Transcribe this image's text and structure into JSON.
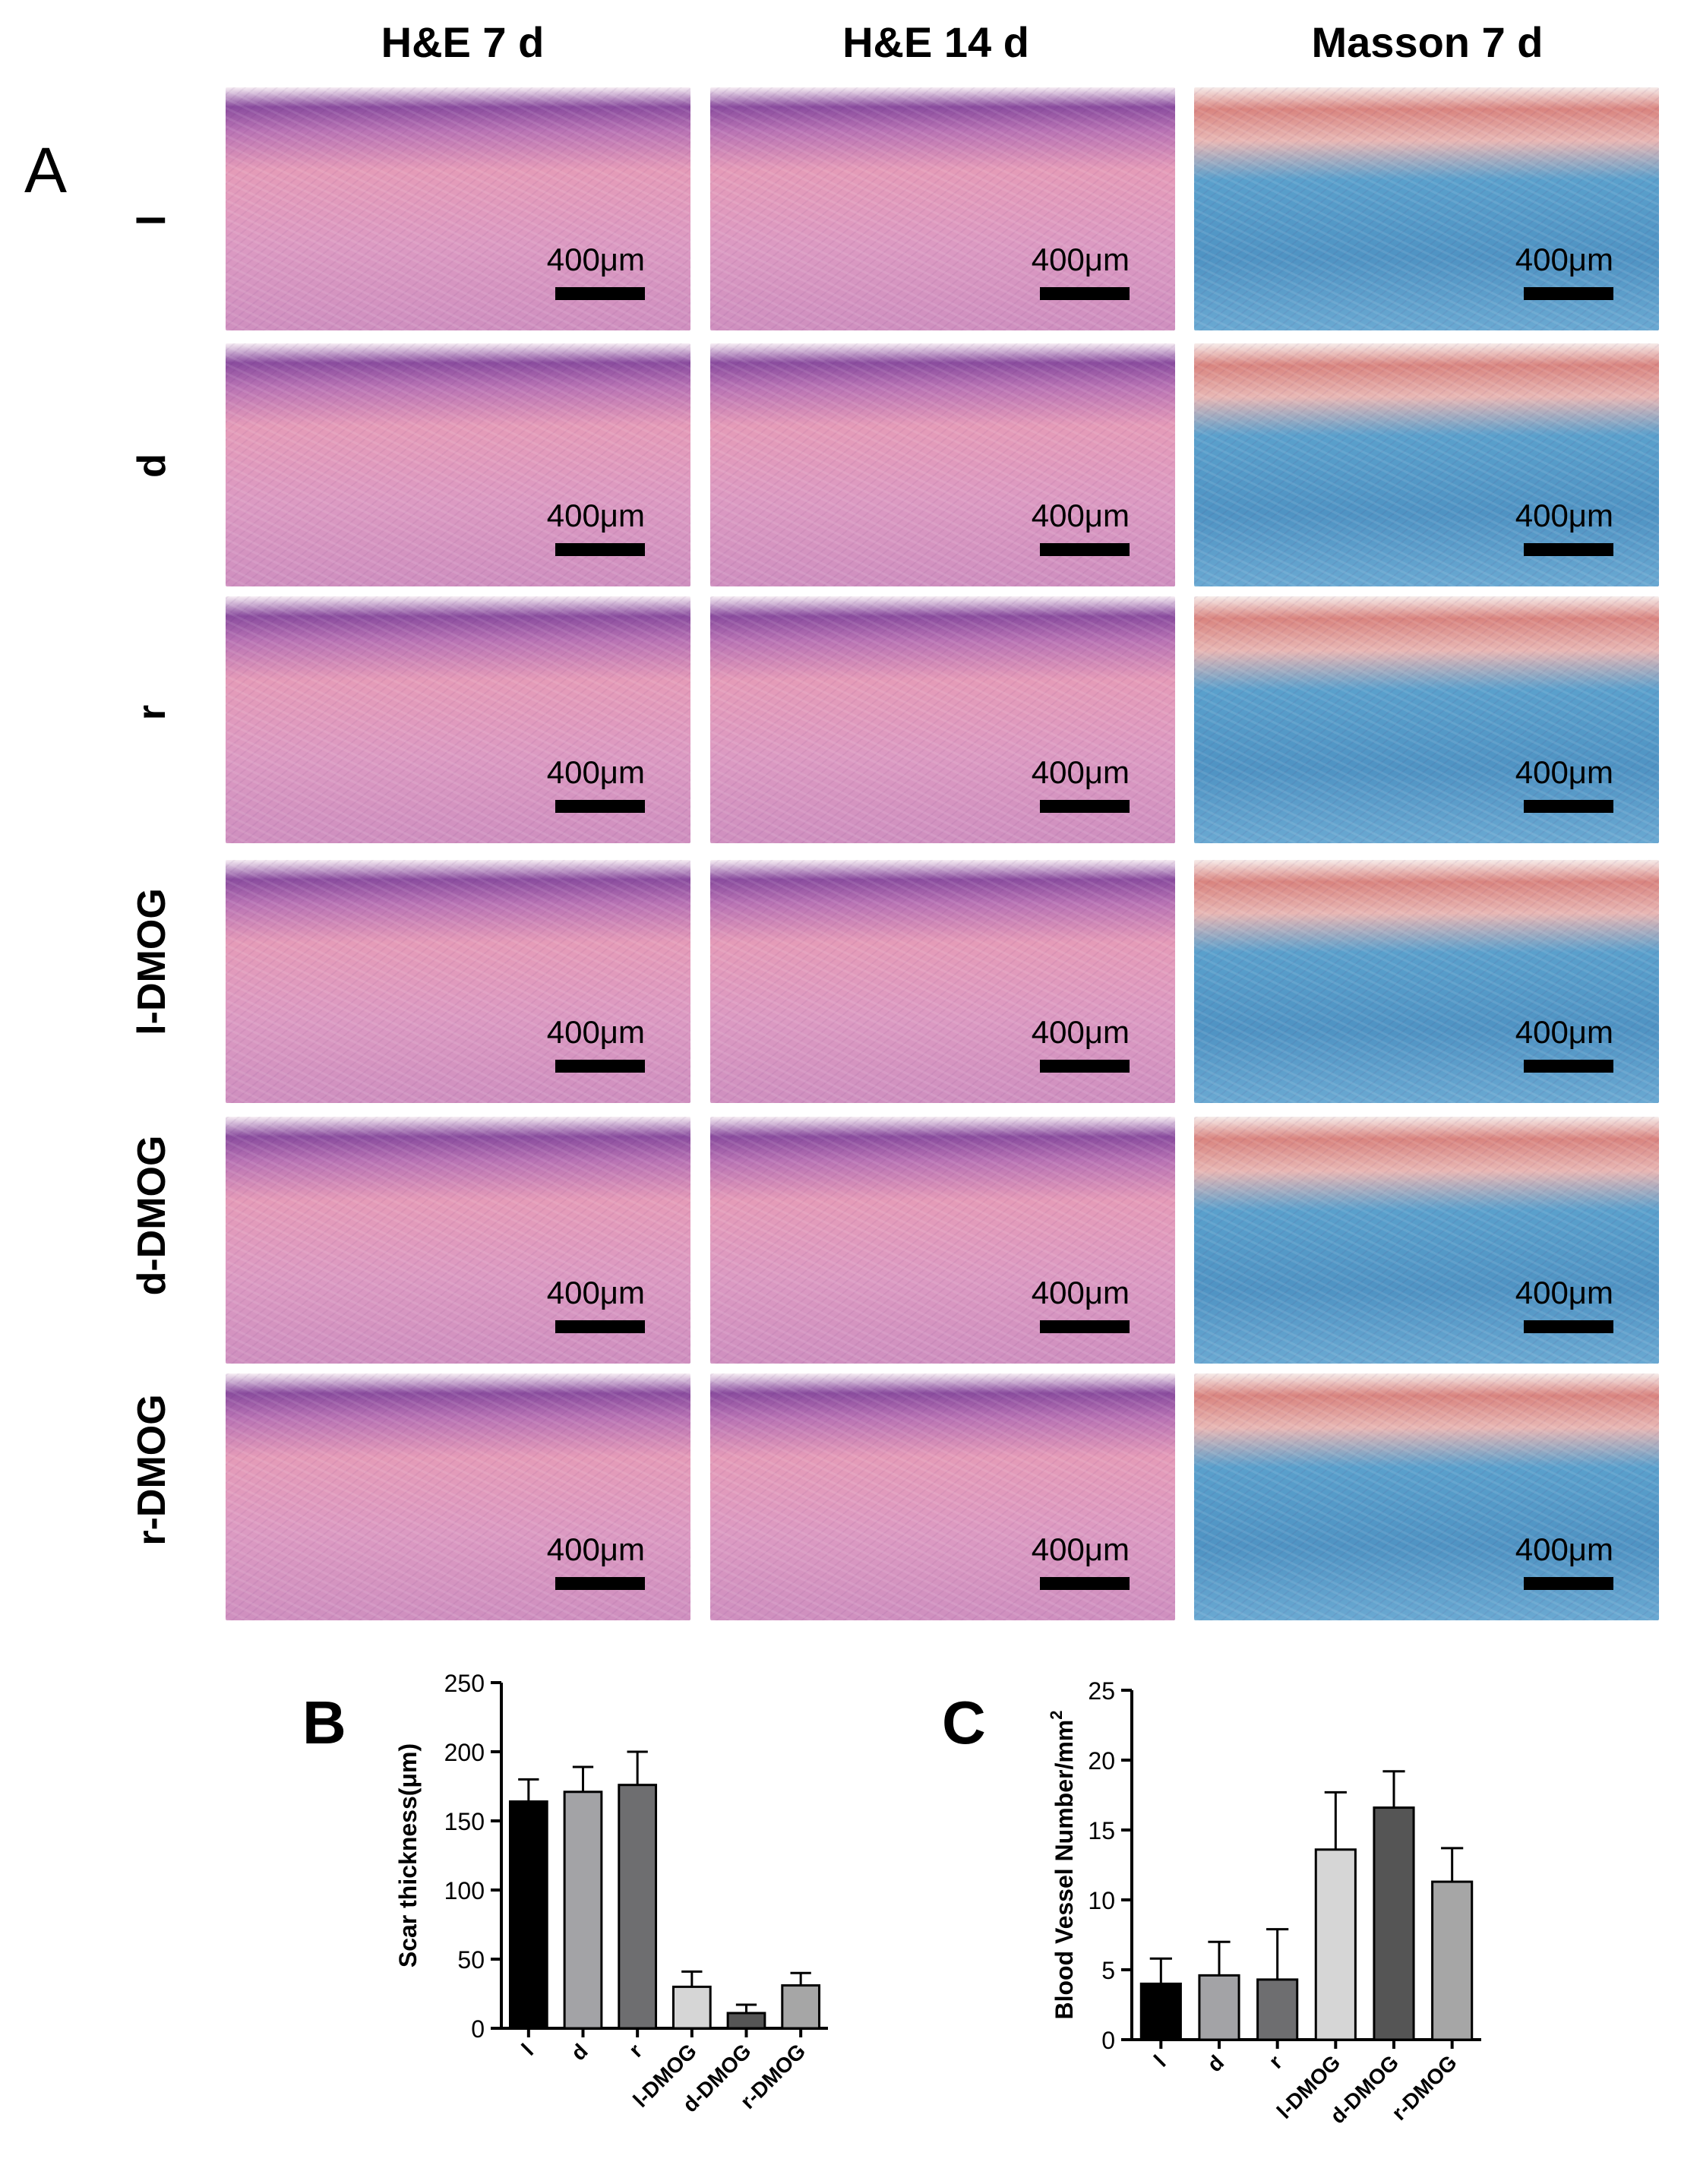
{
  "panel_a": {
    "letter": "A",
    "columns": [
      "H&E 7 d",
      "H&E 14 d",
      "Masson 7 d"
    ],
    "rows": [
      "l",
      "d",
      "r",
      "l-DMOG",
      "d-DMOG",
      "r-DMOG"
    ],
    "scale_bar_label": "400μm",
    "stain_colors": {
      "he_base": "#e59bb8",
      "he_dark": "#8a4c9e",
      "masson_base": "#5aa0cc",
      "masson_red": "#d9847f"
    }
  },
  "chart_data": [
    {
      "panel": "B",
      "type": "bar",
      "categories": [
        "l",
        "d",
        "r",
        "l-DMOG",
        "d-DMOG",
        "r-DMOG"
      ],
      "values": [
        164,
        171,
        176,
        30,
        11,
        31
      ],
      "errors": [
        16,
        18,
        24,
        11,
        6,
        9
      ],
      "colors": [
        "#000000",
        "#a3a3a6",
        "#6e6e70",
        "#d6d6d6",
        "#555555",
        "#a6a6a6"
      ],
      "ylabel": "Scar thickness(μm)",
      "ylim": [
        0,
        250
      ],
      "yticks": [
        "0",
        "50",
        "100",
        "150",
        "200",
        "250"
      ]
    },
    {
      "panel": "C",
      "type": "bar",
      "categories": [
        "l",
        "d",
        "r",
        "l-DMOG",
        "d-DMOG",
        "r-DMOG"
      ],
      "values": [
        4.0,
        4.6,
        4.3,
        13.6,
        16.6,
        11.3
      ],
      "errors": [
        1.8,
        2.4,
        3.6,
        4.1,
        2.6,
        2.4
      ],
      "colors": [
        "#000000",
        "#a3a3a6",
        "#6e6e70",
        "#d6d6d6",
        "#555555",
        "#a6a6a6"
      ],
      "ylabel": "Blood Vessel Number/mm",
      "ylabel_sup": "2",
      "ylim": [
        0,
        25
      ],
      "yticks": [
        "0",
        "5",
        "10",
        "15",
        "20",
        "25"
      ]
    }
  ]
}
